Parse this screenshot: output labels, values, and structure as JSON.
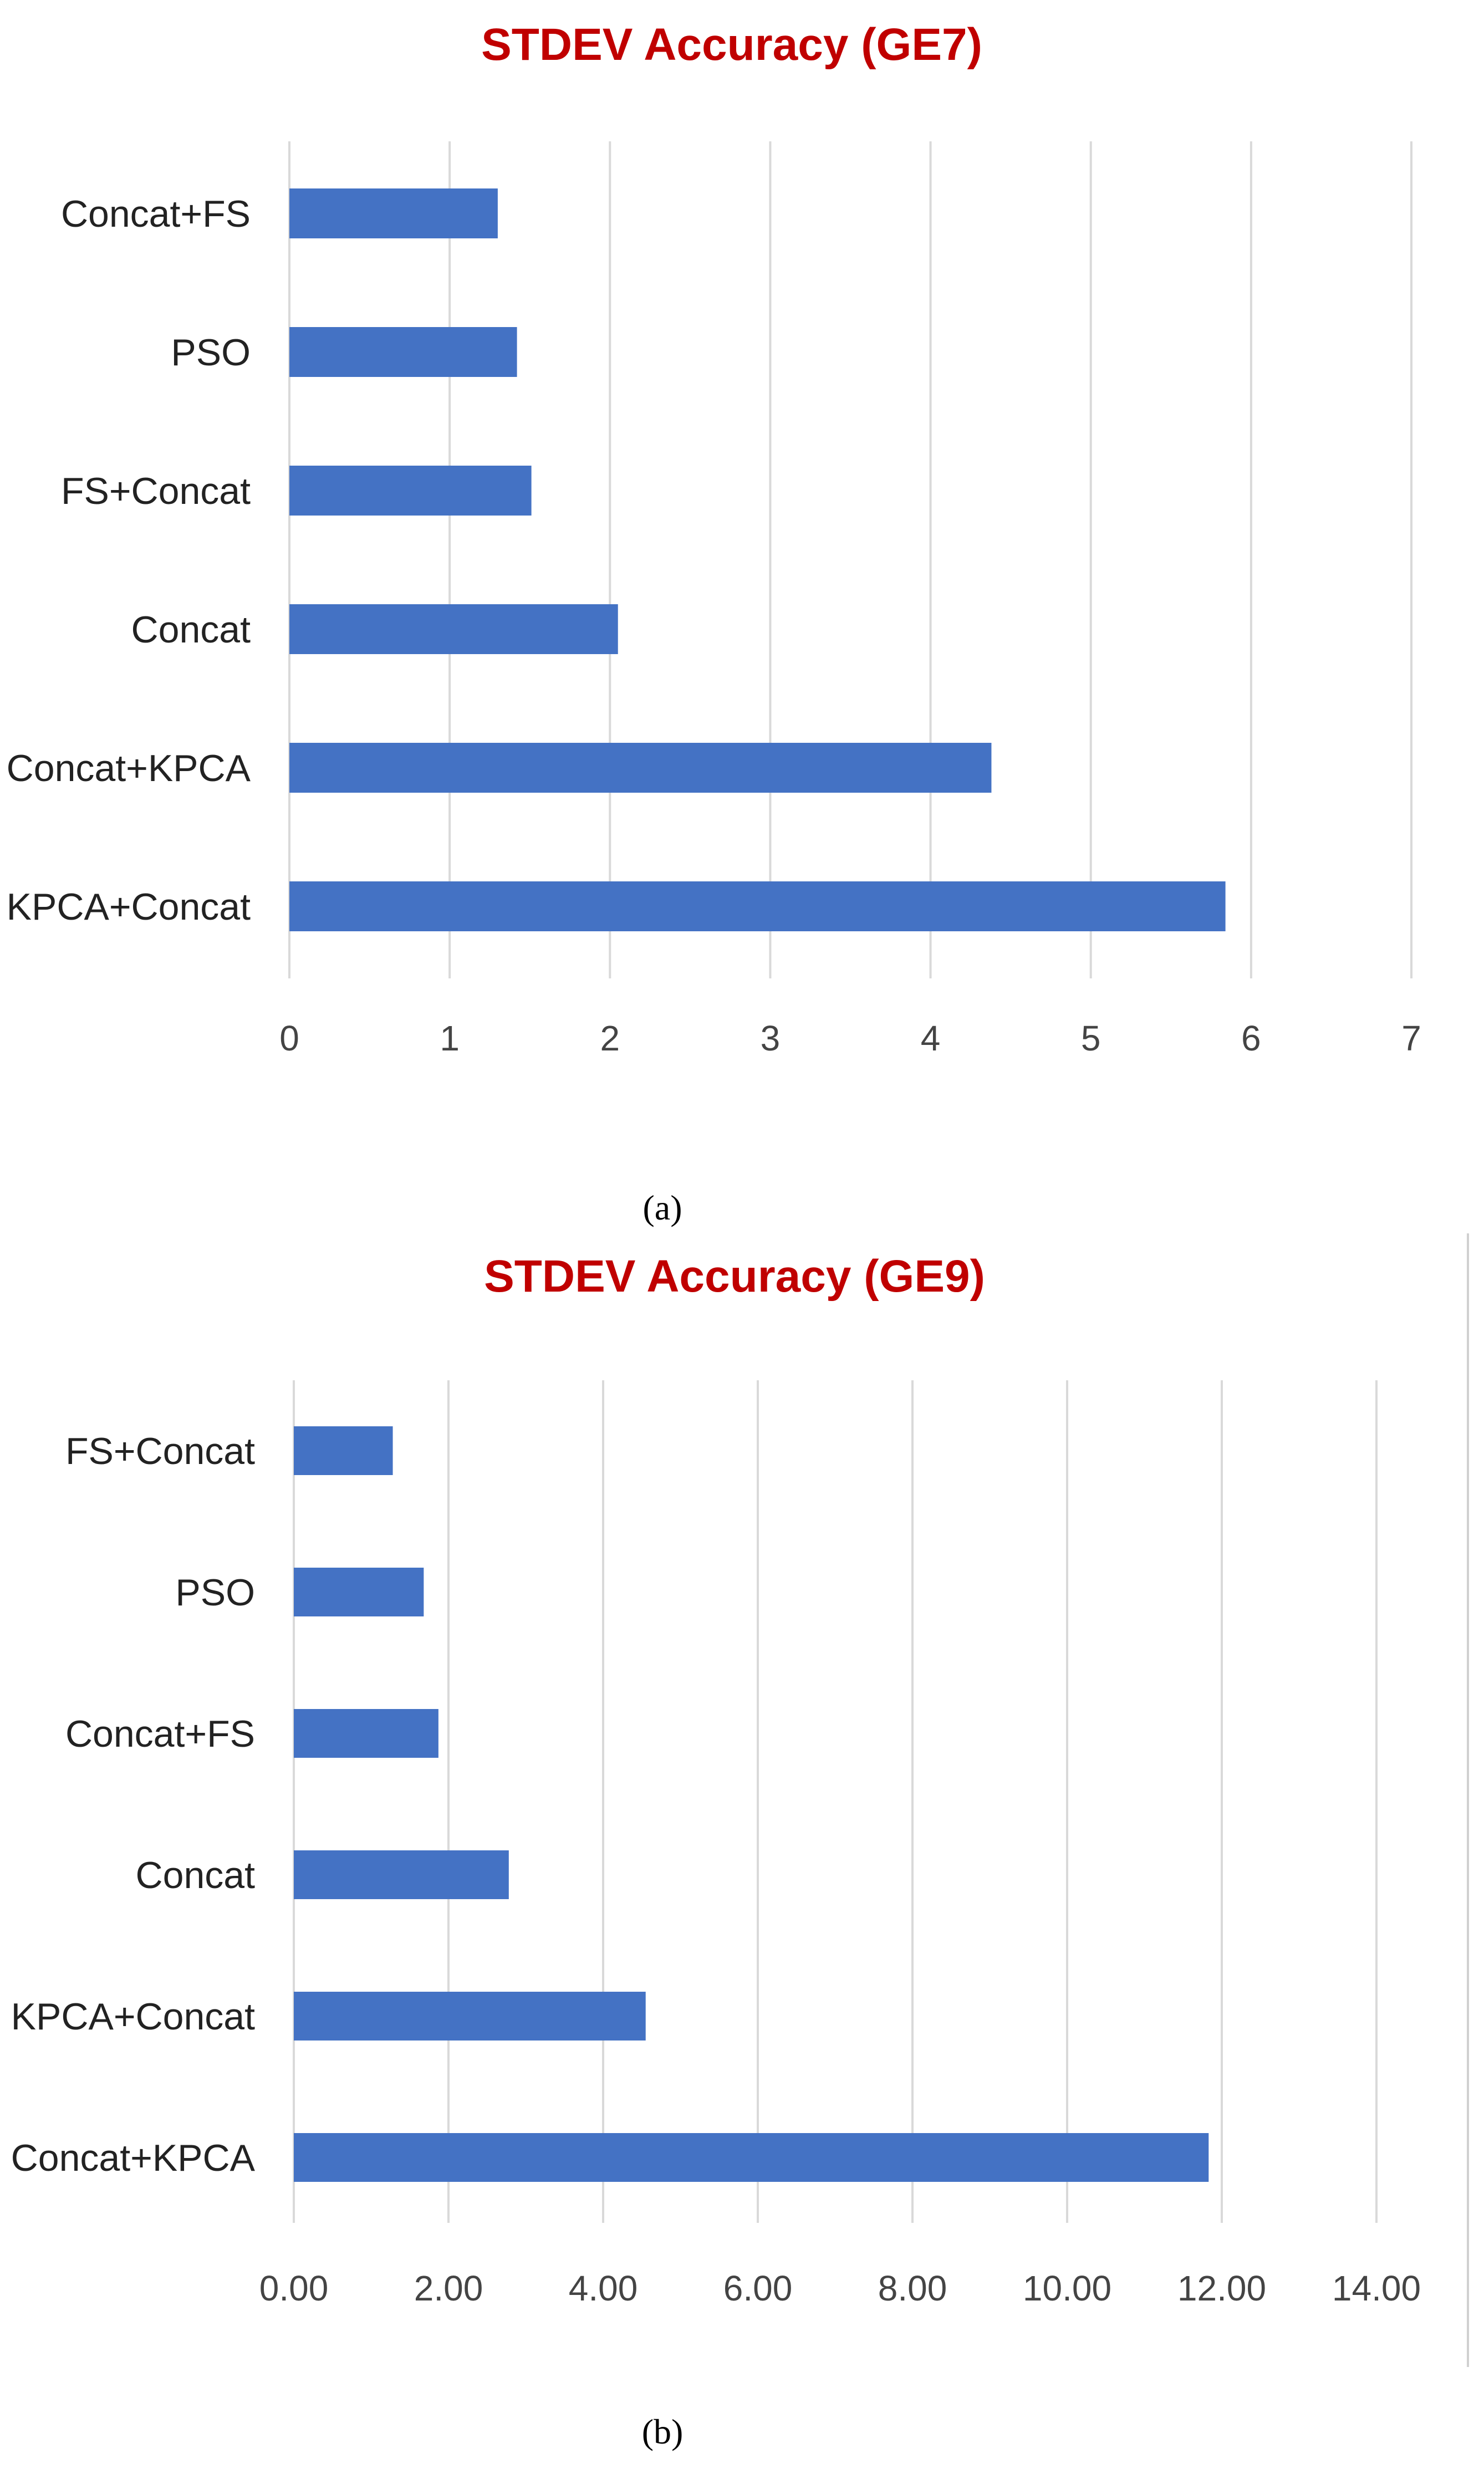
{
  "chart_data": [
    {
      "type": "bar",
      "orientation": "horizontal",
      "title": "STDEV Accuracy (GE7)",
      "caption": "(a)",
      "categories": [
        "Concat+FS",
        "PSO",
        "FS+Concat",
        "Concat",
        "Concat+KPCA",
        "KPCA+Concat"
      ],
      "values": [
        1.3,
        1.42,
        1.51,
        2.05,
        4.38,
        5.84
      ],
      "xlim": [
        0,
        7
      ],
      "xticks": [
        "0",
        "1",
        "2",
        "3",
        "4",
        "5",
        "6",
        "7"
      ],
      "grid": true,
      "bar_color": "#4472c4",
      "title_color": "#c00000"
    },
    {
      "type": "bar",
      "orientation": "horizontal",
      "title": "STDEV Accuracy (GE9)",
      "caption": "(b)",
      "categories": [
        "FS+Concat",
        "PSO",
        "Concat+FS",
        "Concat",
        "KPCA+Concat",
        "Concat+KPCA"
      ],
      "values": [
        1.28,
        1.68,
        1.87,
        2.78,
        4.55,
        11.83
      ],
      "xlim": [
        0,
        14
      ],
      "xticks": [
        "0.00",
        "2.00",
        "4.00",
        "6.00",
        "8.00",
        "10.00",
        "12.00",
        "14.00"
      ],
      "grid": true,
      "bar_color": "#4472c4",
      "title_color": "#c00000"
    }
  ]
}
